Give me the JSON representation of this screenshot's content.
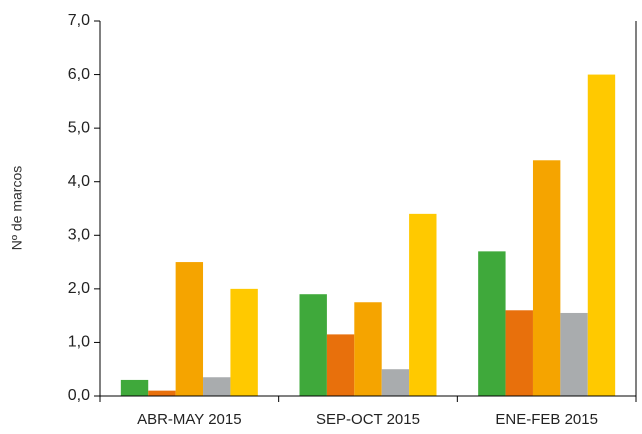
{
  "chart_data": {
    "type": "bar",
    "y_label": "Nº de marcos",
    "categories": [
      "ABR-MAY 2015",
      "SEP-OCT 2015",
      "ENE-FEB 2015"
    ],
    "series": [
      {
        "color": "#3fa93b",
        "values": [
          0.3,
          1.9,
          2.7
        ]
      },
      {
        "color": "#e8700c",
        "values": [
          0.1,
          1.15,
          1.6
        ]
      },
      {
        "color": "#f5a400",
        "values": [
          2.5,
          1.75,
          4.4
        ]
      },
      {
        "color": "#a9acae",
        "values": [
          0.35,
          0.5,
          1.55
        ]
      },
      {
        "color": "#ffc900",
        "values": [
          2.0,
          3.4,
          6.0
        ]
      }
    ],
    "ylim": [
      0,
      7
    ],
    "yticks": [
      {
        "value": 0,
        "label": "0,0"
      },
      {
        "value": 1,
        "label": "1,0"
      },
      {
        "value": 2,
        "label": "2,0"
      },
      {
        "value": 3,
        "label": "3,0"
      },
      {
        "value": 4,
        "label": "4,0"
      },
      {
        "value": 5,
        "label": "5,0"
      },
      {
        "value": 6,
        "label": "6,0"
      },
      {
        "value": 7,
        "label": "7,0"
      }
    ]
  }
}
